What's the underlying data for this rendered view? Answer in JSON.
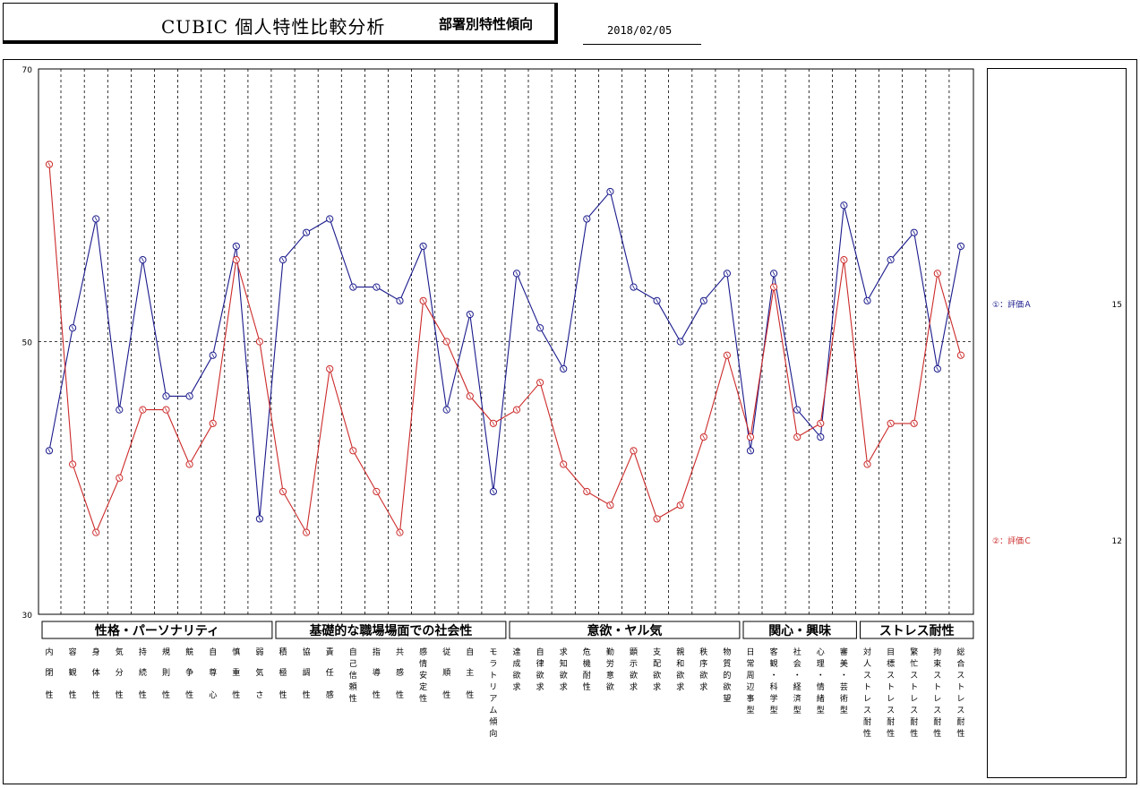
{
  "header": {
    "title": "CUBIC 個人特性比較分析",
    "subtitle": "部署別特性傾向",
    "date": "2018/02/05"
  },
  "chart_data": {
    "type": "line",
    "ylim": [
      30,
      70
    ],
    "y_ticks": [
      "70",
      "50",
      "30"
    ],
    "reference_line": 50,
    "grid": "vertical dashed",
    "categories": [
      "内閉性",
      "容観性",
      "身体性",
      "気分性",
      "持続性",
      "規則性",
      "競争性",
      "自尊心",
      "慎重性",
      "弱気さ",
      "積極性",
      "協調性",
      "責任感",
      "自己信頼性",
      "指導性",
      "共感性",
      "感情安定性",
      "従順性",
      "自主性",
      "モラトリアム傾向",
      "達成欲求",
      "自律欲求",
      "求知欲求",
      "危機耐性",
      "勤労意欲",
      "顕示欲求",
      "支配欲求",
      "親和欲求",
      "秩序欲求",
      "物質的欲望",
      "日常周辺事型",
      "客観・科学型",
      "社会・経済型",
      "心理・情緒型",
      "審美・芸術型",
      "対人ストレス耐性",
      "目標ストレス耐性",
      "繁忙ストレス耐性",
      "拘束ストレス耐性",
      "総合ストレス耐性"
    ],
    "groups": [
      {
        "label": "性格・パーソナリティ",
        "start": 0,
        "end": 9
      },
      {
        "label": "基礎的な職場場面での社会性",
        "start": 10,
        "end": 19
      },
      {
        "label": "意欲・ヤル気",
        "start": 20,
        "end": 29
      },
      {
        "label": "関心・興味",
        "start": 30,
        "end": 34
      },
      {
        "label": "ストレス耐性",
        "start": 35,
        "end": 39
      }
    ],
    "series": [
      {
        "name": "評価Ａ",
        "marker": "①",
        "count": "15",
        "color": "#1a1a8c",
        "values": [
          42,
          51,
          59,
          45,
          56,
          46,
          46,
          49,
          57,
          37,
          56,
          58,
          59,
          54,
          54,
          53,
          57,
          45,
          52,
          39,
          55,
          51,
          48,
          59,
          61,
          54,
          53,
          50,
          53,
          55,
          42,
          55,
          45,
          43,
          60,
          53,
          56,
          58,
          48,
          57
        ]
      },
      {
        "name": "評価Ｃ",
        "marker": "②",
        "count": "12",
        "color": "#cc2a2a",
        "values": [
          63,
          41,
          36,
          40,
          45,
          45,
          41,
          44,
          56,
          50,
          39,
          36,
          48,
          42,
          39,
          36,
          53,
          50,
          46,
          44,
          45,
          47,
          41,
          39,
          38,
          42,
          37,
          38,
          43,
          49,
          43,
          54,
          43,
          44,
          56,
          41,
          44,
          44,
          55,
          49
        ]
      }
    ]
  }
}
